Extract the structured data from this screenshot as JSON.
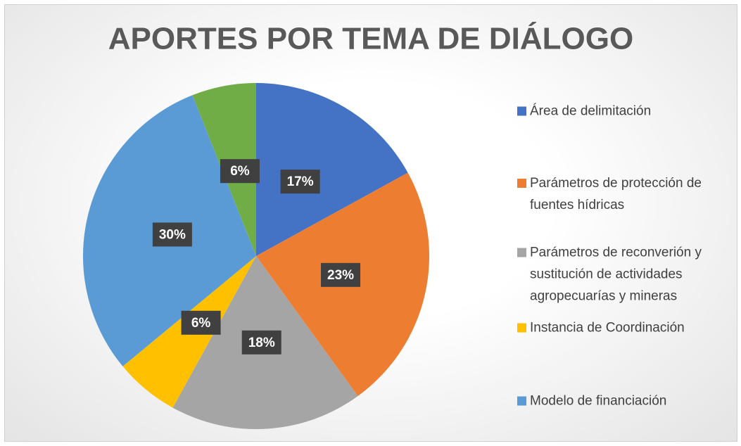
{
  "chart_data": {
    "type": "pie",
    "title": "APORTES POR TEMA DE DIÁLOGO",
    "categories": [
      "Área de delimitación",
      "Parámetros de protección de fuentes hídricas",
      "Parámetros de reconverión y sustitución de actividades agropecuarías y mineras",
      "Instancia de Coordinación",
      "Modelo de financiación",
      null
    ],
    "values": [
      17,
      23,
      18,
      6,
      30,
      6
    ],
    "value_labels": [
      "17%",
      "23%",
      "18%",
      "6%",
      "30%",
      "6%"
    ],
    "colors": [
      "#4472c4",
      "#ed7d31",
      "#a5a5a5",
      "#ffc000",
      "#5b9bd5",
      "#70ad47"
    ],
    "legend": "right"
  }
}
